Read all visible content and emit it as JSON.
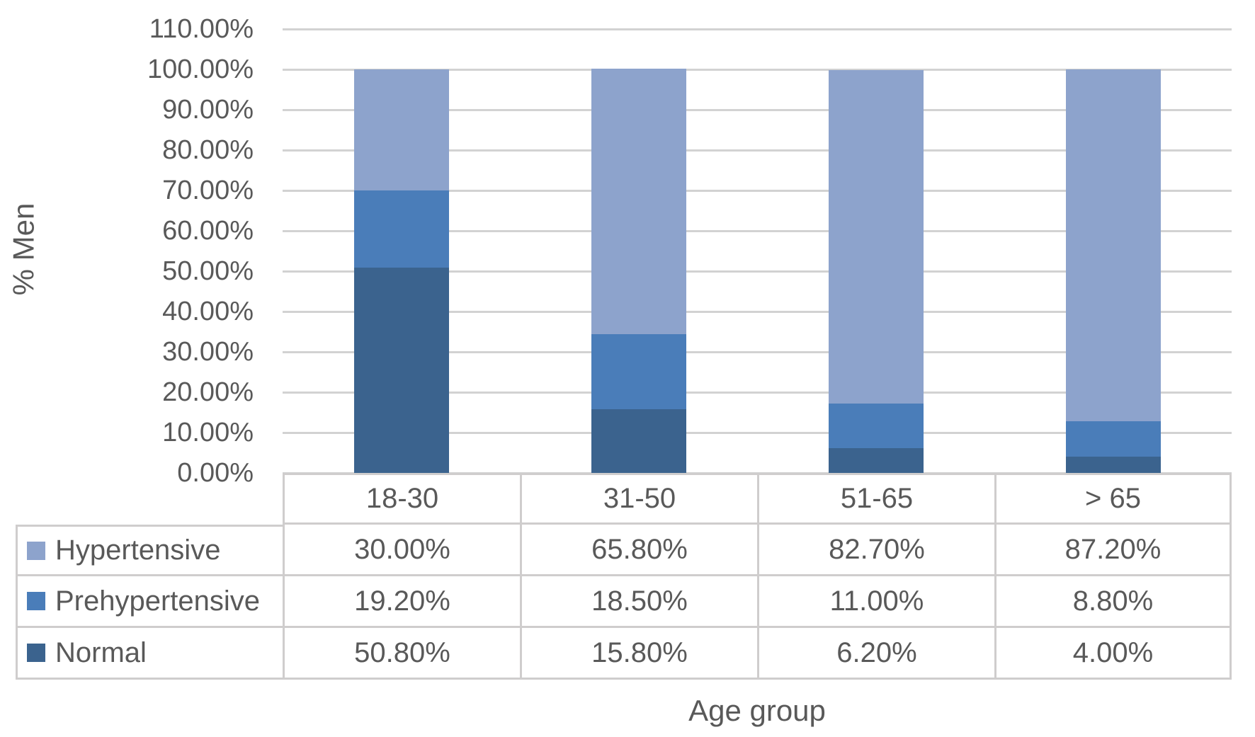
{
  "figure": {
    "background": "#FFFFFF",
    "text_color": "#595959",
    "gridline_color": "#D2D2D2",
    "table_border_color": "#CFCDCD"
  },
  "chart_data": {
    "type": "bar",
    "variant": "stacked-column-100",
    "title": "",
    "xlabel": "Age group",
    "ylabel": "% Men",
    "ylim": [
      0,
      110
    ],
    "y_tick_step": 10,
    "grid": "horizontal",
    "legend_position": "table-left",
    "y_ticks": [
      {
        "label": "110.00%",
        "value": 110
      },
      {
        "label": "100.00%",
        "value": 100
      },
      {
        "label": "90.00%",
        "value": 90
      },
      {
        "label": "80.00%",
        "value": 80
      },
      {
        "label": "70.00%",
        "value": 70
      },
      {
        "label": "60.00%",
        "value": 60
      },
      {
        "label": "50.00%",
        "value": 50
      },
      {
        "label": "40.00%",
        "value": 40
      },
      {
        "label": "30.00%",
        "value": 30
      },
      {
        "label": "20.00%",
        "value": 20
      },
      {
        "label": "10.00%",
        "value": 10
      },
      {
        "label": "0.00%",
        "value": 0
      }
    ],
    "categories": [
      "18-30",
      "31-50",
      "51-65",
      "> 65"
    ],
    "series": [
      {
        "name": "Hypertensive",
        "color": "#8DA3CC",
        "values": [
          30.0,
          65.8,
          82.7,
          87.2
        ],
        "value_labels": [
          "30.00%",
          "65.80%",
          "82.70%",
          "87.20%"
        ]
      },
      {
        "name": "Prehypertensive",
        "color": "#4A7DB9",
        "values": [
          19.2,
          18.5,
          11.0,
          8.8
        ],
        "value_labels": [
          "19.20%",
          "18.50%",
          "11.00%",
          "8.80%"
        ]
      },
      {
        "name": "Normal",
        "color": "#3B638E",
        "values": [
          50.8,
          15.8,
          6.2,
          4.0
        ],
        "value_labels": [
          "50.80%",
          "15.80%",
          "6.20%",
          "4.00%"
        ]
      }
    ],
    "stack_order_bottom_to_top": [
      "Normal",
      "Prehypertensive",
      "Hypertensive"
    ]
  }
}
